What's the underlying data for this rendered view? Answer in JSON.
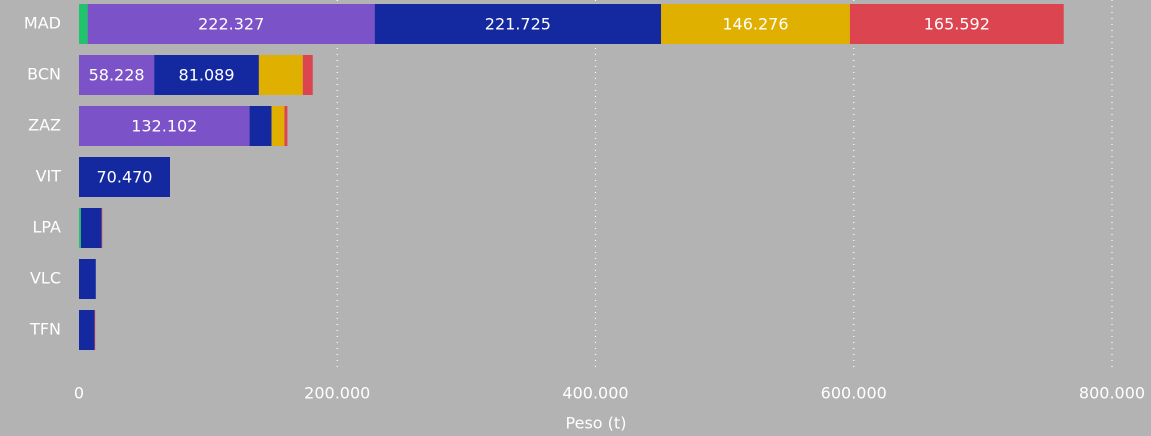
{
  "chart_data": {
    "type": "stacked_barh",
    "x_label": "Peso (t)",
    "categories": [
      "MAD",
      "BCN",
      "ZAZ",
      "VIT",
      "LPA",
      "VLC",
      "TFN"
    ],
    "series": [
      {
        "color": "#1fc46b",
        "values": [
          6700,
          0,
          0,
          0,
          1500,
          0,
          0
        ],
        "value_labels": [
          null,
          null,
          null,
          null,
          null,
          null,
          null
        ]
      },
      {
        "color": "#7b52c7",
        "values": [
          222327,
          58228,
          132102,
          0,
          0,
          0,
          0
        ],
        "value_labels": [
          "222.327",
          "58.228",
          "132.102",
          null,
          null,
          null,
          null
        ]
      },
      {
        "color": "#1428a0",
        "values": [
          221725,
          81089,
          17000,
          70470,
          16000,
          13000,
          12000
        ],
        "value_labels": [
          "221.725",
          "81.089",
          null,
          "70.470",
          null,
          null,
          null
        ]
      },
      {
        "color": "#e0b000",
        "values": [
          146276,
          34000,
          10000,
          0,
          0,
          0,
          0
        ],
        "value_labels": [
          "146.276",
          null,
          null,
          null,
          null,
          null,
          null
        ]
      },
      {
        "color": "#dc4450",
        "values": [
          165592,
          7700,
          2300,
          0,
          500,
          0,
          500
        ],
        "value_labels": [
          "165.592",
          null,
          null,
          null,
          null,
          null,
          null
        ]
      }
    ],
    "xlim": [
      0,
      800000
    ],
    "xticks": [
      0,
      {
        "value": 200000,
        "label": "200.000"
      },
      {
        "value": 400000,
        "label": "400.000"
      },
      {
        "value": 600000,
        "label": "600.000"
      },
      {
        "value": 800000,
        "label": "800.000"
      }
    ],
    "grid": true
  }
}
